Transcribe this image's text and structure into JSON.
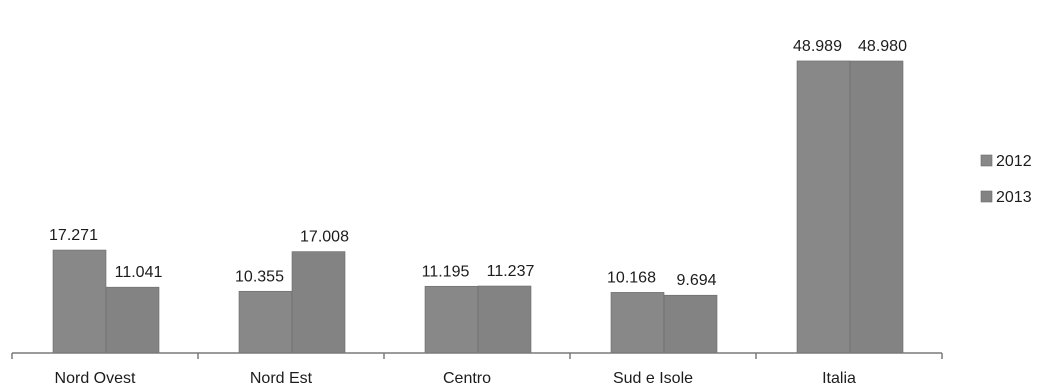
{
  "chart_data": {
    "type": "bar",
    "title": "",
    "xlabel": "",
    "ylabel": "",
    "categories": [
      "Nord Ovest",
      "Nord Est",
      "Centro",
      "Sud e Isole",
      "Italia"
    ],
    "series": [
      {
        "name": "2012",
        "values": [
          17271,
          10355,
          11195,
          10168,
          48989
        ],
        "labels": [
          "17.271",
          "10.355",
          "11.195",
          "10.168",
          "48.989"
        ],
        "color": "#888888"
      },
      {
        "name": "2013",
        "values": [
          11041,
          17008,
          11237,
          9694,
          48980
        ],
        "labels": [
          "11.041",
          "17.008",
          "11.237",
          "9.694",
          "48.980"
        ],
        "color": "#838383"
      }
    ],
    "ylim": [
      0,
      52000
    ],
    "grid": false,
    "legend": "right"
  }
}
